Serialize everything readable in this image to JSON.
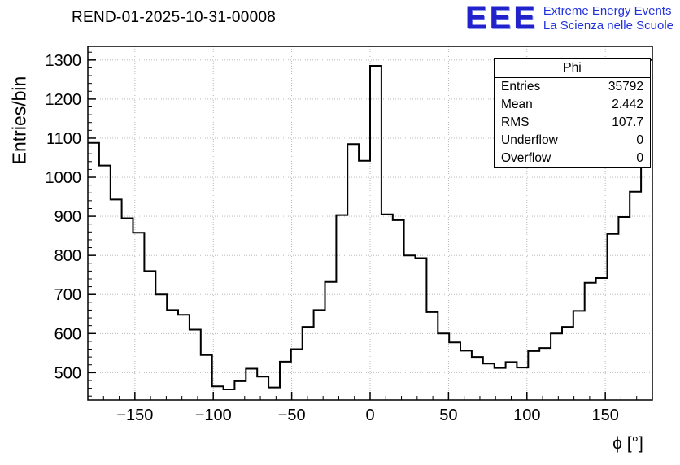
{
  "title": "REND-01-2025-10-31-00008",
  "logo": {
    "text": "EEE",
    "line1": "Extreme Energy Events",
    "line2": "La Scienza nelle Scuole",
    "color": "#2222cc"
  },
  "stats": {
    "title": "Phi",
    "rows": [
      {
        "label": "Entries",
        "value": "35792"
      },
      {
        "label": "Mean",
        "value": "2.442"
      },
      {
        "label": "RMS",
        "value": "107.7"
      },
      {
        "label": "Underflow",
        "value": "0"
      },
      {
        "label": "Overflow",
        "value": "0"
      }
    ]
  },
  "axes": {
    "y_label": "Entries/bin",
    "x_label": "ϕ [°]",
    "x_ticks": [
      -150,
      -100,
      -50,
      0,
      50,
      100,
      150
    ],
    "y_ticks": [
      500,
      600,
      700,
      800,
      900,
      1000,
      1100,
      1200,
      1300
    ],
    "x_minor_step": 10,
    "y_minor_step": 20
  },
  "chart_data": {
    "type": "bar",
    "subtype": "histogram-step",
    "title": "REND-01-2025-10-31-00008",
    "xlabel": "ϕ [°]",
    "ylabel": "Entries/bin",
    "x_min": -180,
    "x_max": 180,
    "bins": 50,
    "bin_width": 7.2,
    "values": [
      1088,
      1030,
      943,
      895,
      858,
      760,
      700,
      660,
      648,
      610,
      545,
      465,
      457,
      478,
      510,
      490,
      462,
      528,
      560,
      617,
      660,
      732,
      903,
      1085,
      1042,
      1285,
      905,
      890,
      800,
      793,
      655,
      600,
      577,
      556,
      540,
      523,
      512,
      527,
      513,
      555,
      563,
      600,
      617,
      658,
      730,
      742,
      855,
      898,
      963,
      1300
    ],
    "ylim": [
      430,
      1335
    ],
    "grid": true,
    "line_color": "#000000",
    "grid_color": "#b0b0b0"
  }
}
